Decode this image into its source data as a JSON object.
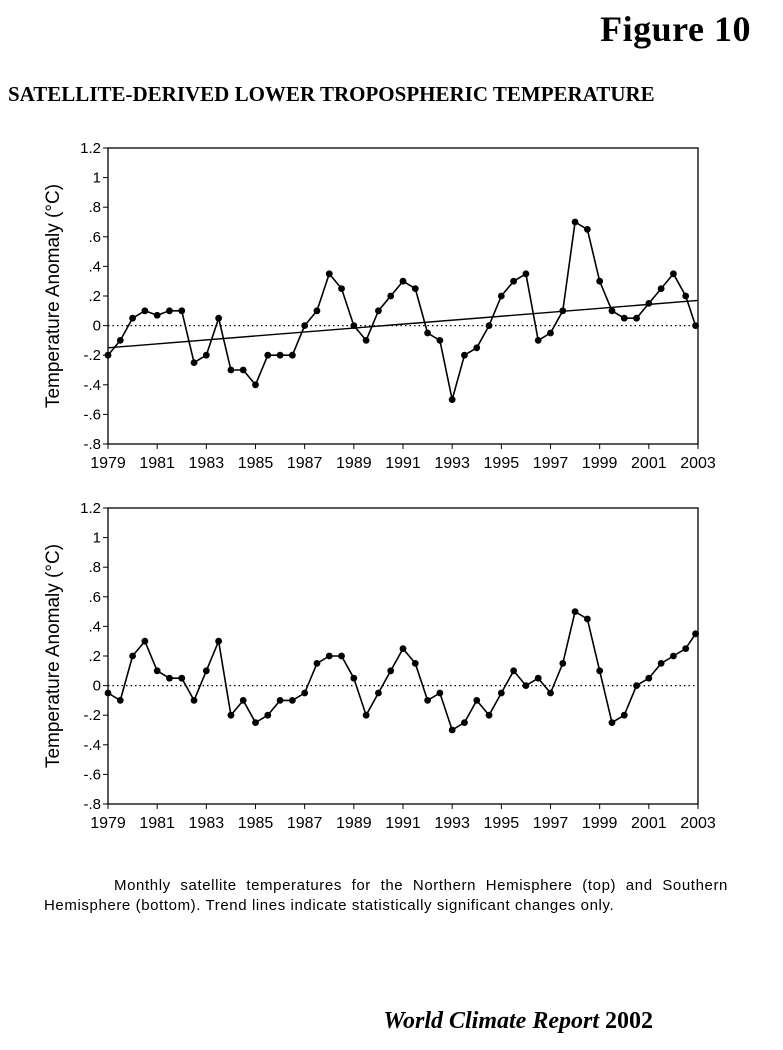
{
  "figure_label": "Figure 10",
  "title": "SATELLITE-DERIVED LOWER TROPOSPHERIC TEMPERATURE",
  "caption": "Monthly satellite temperatures for the Northern Hemisphere (top) and Southern Hemisphere (bottom). Trend lines indicate statistically significant changes only.",
  "footer": {
    "publication": "World Climate Report",
    "year": "2002"
  },
  "chart_data": [
    {
      "type": "line",
      "ylabel": "Temperature Anomaly (°C)",
      "xlim": [
        1979,
        2003
      ],
      "ylim": [
        -0.8,
        1.2
      ],
      "x_ticks": [
        1979,
        1981,
        1983,
        1985,
        1987,
        1989,
        1991,
        1993,
        1995,
        1997,
        1999,
        2001,
        2003
      ],
      "y_ticks": [
        -0.8,
        -0.6,
        -0.4,
        -0.2,
        0,
        0.2,
        0.4,
        0.6,
        0.8,
        1,
        1.2
      ],
      "y_tick_labels": [
        "-.8",
        "-.6",
        "-.4",
        "-.2",
        "0",
        ".2",
        ".4",
        ".6",
        ".8",
        "1",
        "1.2"
      ],
      "x_tick_labels": [
        "1979",
        "1981",
        "1983",
        "1985",
        "1987",
        "1989",
        "1991",
        "1993",
        "1995",
        "1997",
        "1999",
        "2001",
        "2003"
      ],
      "grid": false,
      "zero_line": "dotted",
      "trend_line": {
        "x": [
          1979,
          2003
        ],
        "y": [
          -0.15,
          0.17
        ]
      },
      "x": [
        1979.0,
        1979.5,
        1980.0,
        1980.5,
        1981.0,
        1981.5,
        1982.0,
        1982.5,
        1983.0,
        1983.5,
        1984.0,
        1984.5,
        1985.0,
        1985.5,
        1986.0,
        1986.5,
        1987.0,
        1987.5,
        1988.0,
        1988.5,
        1989.0,
        1989.5,
        1990.0,
        1990.5,
        1991.0,
        1991.5,
        1992.0,
        1992.5,
        1993.0,
        1993.5,
        1994.0,
        1994.5,
        1995.0,
        1995.5,
        1996.0,
        1996.5,
        1997.0,
        1997.5,
        1998.0,
        1998.5,
        1999.0,
        1999.5,
        2000.0,
        2000.5,
        2001.0,
        2001.5,
        2002.0,
        2002.5,
        2002.9
      ],
      "values": [
        -0.2,
        -0.1,
        0.05,
        0.1,
        0.07,
        0.1,
        0.1,
        -0.25,
        -0.2,
        0.05,
        -0.3,
        -0.3,
        -0.4,
        -0.2,
        -0.2,
        -0.2,
        0.0,
        0.1,
        0.35,
        0.25,
        0.0,
        -0.1,
        0.1,
        0.2,
        0.3,
        0.25,
        -0.05,
        -0.1,
        -0.5,
        -0.2,
        -0.15,
        0.0,
        0.2,
        0.3,
        0.35,
        -0.1,
        -0.05,
        0.1,
        0.7,
        0.65,
        0.3,
        0.1,
        0.05,
        0.05,
        0.15,
        0.25,
        0.35,
        0.2,
        0.0
      ]
    },
    {
      "type": "line",
      "ylabel": "Temperature Anomaly (°C)",
      "xlim": [
        1979,
        2003
      ],
      "ylim": [
        -0.8,
        1.2
      ],
      "x_ticks": [
        1979,
        1981,
        1983,
        1985,
        1987,
        1989,
        1991,
        1993,
        1995,
        1997,
        1999,
        2001,
        2003
      ],
      "y_ticks": [
        -0.8,
        -0.6,
        -0.4,
        -0.2,
        0,
        0.2,
        0.4,
        0.6,
        0.8,
        1,
        1.2
      ],
      "y_tick_labels": [
        "-.8",
        "-.6",
        "-.4",
        "-.2",
        "0",
        ".2",
        ".4",
        ".6",
        ".8",
        "1",
        "1.2"
      ],
      "x_tick_labels": [
        "1979",
        "1981",
        "1983",
        "1985",
        "1987",
        "1989",
        "1991",
        "1993",
        "1995",
        "1997",
        "1999",
        "2001",
        "2003"
      ],
      "grid": false,
      "zero_line": "dotted",
      "x": [
        1979.0,
        1979.5,
        1980.0,
        1980.5,
        1981.0,
        1981.5,
        1982.0,
        1982.5,
        1983.0,
        1983.5,
        1984.0,
        1984.5,
        1985.0,
        1985.5,
        1986.0,
        1986.5,
        1987.0,
        1987.5,
        1988.0,
        1988.5,
        1989.0,
        1989.5,
        1990.0,
        1990.5,
        1991.0,
        1991.5,
        1992.0,
        1992.5,
        1993.0,
        1993.5,
        1994.0,
        1994.5,
        1995.0,
        1995.5,
        1996.0,
        1996.5,
        1997.0,
        1997.5,
        1998.0,
        1998.5,
        1999.0,
        1999.5,
        2000.0,
        2000.5,
        2001.0,
        2001.5,
        2002.0,
        2002.5,
        2002.9
      ],
      "values": [
        -0.05,
        -0.1,
        0.2,
        0.3,
        0.1,
        0.05,
        0.05,
        -0.1,
        0.1,
        0.3,
        -0.2,
        -0.1,
        -0.25,
        -0.2,
        -0.1,
        -0.1,
        -0.05,
        0.15,
        0.2,
        0.2,
        0.05,
        -0.2,
        -0.05,
        0.1,
        0.25,
        0.15,
        -0.1,
        -0.05,
        -0.3,
        -0.25,
        -0.1,
        -0.2,
        -0.05,
        0.1,
        0.0,
        0.05,
        -0.05,
        0.15,
        0.5,
        0.45,
        0.1,
        -0.25,
        -0.2,
        0.0,
        0.05,
        0.15,
        0.2,
        0.25,
        0.35
      ]
    }
  ]
}
